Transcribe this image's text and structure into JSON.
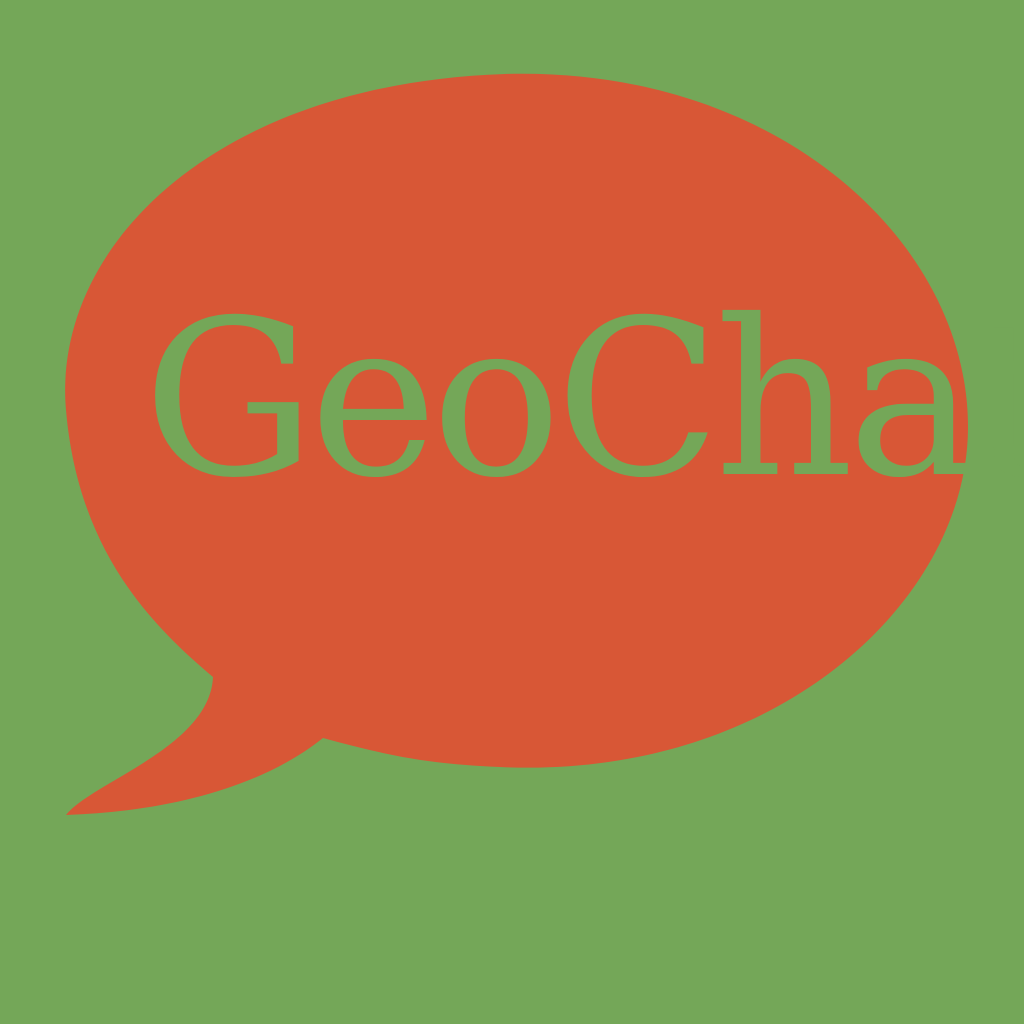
{
  "logo": {
    "text": "GeoChat",
    "icon": "speech-bubble-icon"
  },
  "colors": {
    "background": "#74a758",
    "bubble": "#d85736",
    "text": "#74a758"
  }
}
